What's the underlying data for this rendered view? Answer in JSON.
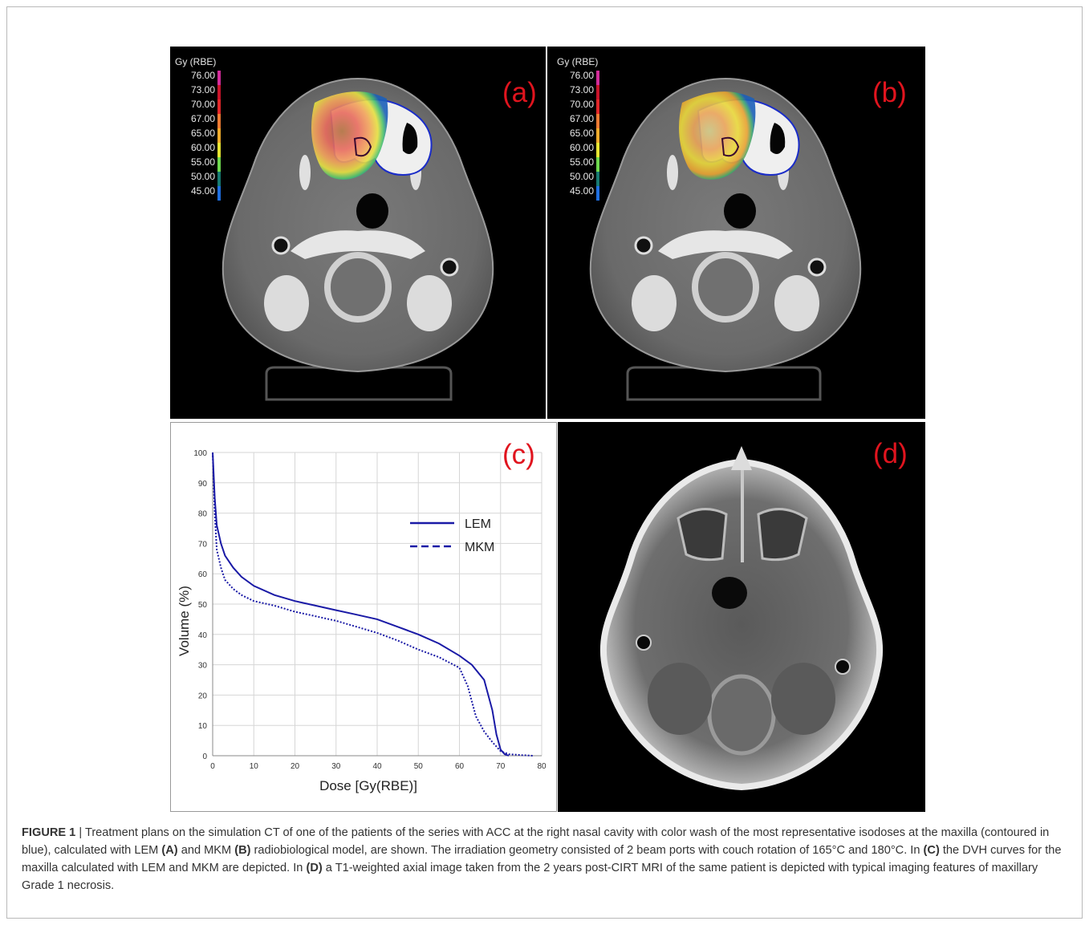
{
  "panels": {
    "a": {
      "letter": "(a)",
      "colorbar_title": "Gy (RBE)"
    },
    "b": {
      "letter": "(b)",
      "colorbar_title": "Gy (RBE)"
    },
    "c": {
      "letter": "(c)"
    },
    "d": {
      "letter": "(d)"
    }
  },
  "colorbar": {
    "levels": [
      "76.00",
      "73.00",
      "70.00",
      "67.00",
      "65.00",
      "60.00",
      "55.00",
      "50.00",
      "45.00"
    ],
    "colors": [
      "#d22c9a",
      "#c8142a",
      "#e2282a",
      "#ec7a33",
      "#f0ab2c",
      "#e6e432",
      "#6ed84e",
      "#177a72",
      "#1f6fe0"
    ]
  },
  "chart_data": {
    "type": "line",
    "xlabel": "Dose [Gy(RBE)]",
    "ylabel": "Volume (%)",
    "xlim": [
      0,
      80
    ],
    "ylim": [
      0,
      100
    ],
    "xticks": [
      "0",
      "10",
      "20",
      "30",
      "40",
      "50",
      "60",
      "70",
      "80"
    ],
    "yticks": [
      "0",
      "10",
      "20",
      "30",
      "40",
      "50",
      "60",
      "70",
      "80",
      "90",
      "100"
    ],
    "grid": true,
    "legend_position": "right",
    "series": [
      {
        "name": "LEM",
        "style": "solid",
        "color": "#1a1aa6",
        "x": [
          0,
          0.5,
          1,
          2,
          3,
          5,
          7,
          10,
          15,
          20,
          25,
          30,
          35,
          40,
          45,
          50,
          55,
          60,
          63,
          66,
          68,
          69,
          70,
          71,
          72
        ],
        "y": [
          100,
          85,
          76,
          70,
          66,
          62,
          59,
          56,
          53,
          51,
          49.5,
          48,
          46.5,
          45,
          42.5,
          40,
          37,
          33,
          30,
          25,
          15,
          7,
          2,
          0.5,
          0
        ]
      },
      {
        "name": "MKM",
        "style": "dashed",
        "color": "#1a1aa6",
        "x": [
          0,
          0.5,
          1,
          2,
          3,
          5,
          7,
          10,
          15,
          20,
          25,
          30,
          35,
          40,
          45,
          50,
          55,
          60,
          62,
          64,
          66,
          68,
          70,
          72,
          75,
          78
        ],
        "y": [
          100,
          80,
          68,
          62,
          58,
          55,
          53,
          51,
          49.5,
          47.5,
          46,
          44.5,
          42.5,
          40.5,
          38,
          35,
          32.5,
          29,
          23,
          13,
          8,
          4.5,
          1.5,
          0.5,
          0.2,
          0
        ]
      }
    ]
  },
  "caption": {
    "figure_label": "FIGURE 1",
    "text_1": " | Treatment plans on the simulation CT of one of the patients of the series with ACC at the right nasal cavity with color wash of the most representative isodoses at the maxilla (contoured in blue), calculated with LEM ",
    "ref_a": "(A)",
    "text_2": " and MKM ",
    "ref_b": "(B)",
    "text_3": " radiobiological model, are shown. The irradiation geometry consisted of 2 beam ports with couch rotation of 165°C and 180°C. In ",
    "ref_c": "(C)",
    "text_4": " the DVH curves for the maxilla calculated with LEM and MKM are depicted. In ",
    "ref_d": "(D)",
    "text_5": " a T1-weighted axial image taken from the 2 years post-CIRT MRI of the same patient is depicted with typical imaging features of maxillary Grade 1 necrosis."
  }
}
